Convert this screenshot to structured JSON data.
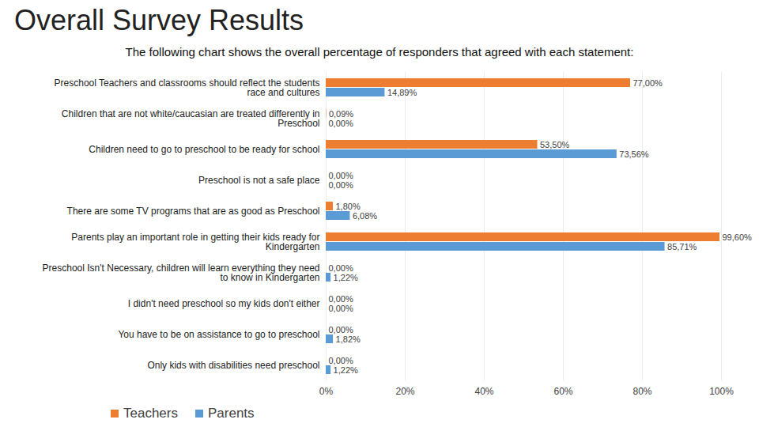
{
  "chart_data": {
    "type": "bar",
    "title": "Overall Survey Results",
    "subtitle": "The following chart shows the overall percentage of responders that agreed with each statement:",
    "orientation": "horizontal",
    "categories": [
      "Preschool Teachers and classrooms should reflect the students race and cultures",
      "Children that are not white/caucasian are treated differently in Preschool",
      "Children need to go to preschool to be ready for school",
      "Preschool is not a safe place",
      "There are some TV programs that are as good as Preschool",
      "Parents play an important role in getting their kids ready for Kindergarten",
      "Preschool Isn't Necessary, children will learn everything they need to know in Kindergarten",
      "I didn't need preschool so my kids don't either",
      "You have to be on assistance to go to preschool",
      "Only kids with disabilities need preschool"
    ],
    "series": [
      {
        "name": "Teachers",
        "color": "#ED7D31",
        "values": [
          77.0,
          0.09,
          53.5,
          0.0,
          1.8,
          99.6,
          0.0,
          0.0,
          0.0,
          0.0
        ],
        "value_labels": [
          "77,00%",
          "0,09%",
          "53,50%",
          "0,00%",
          "1,80%",
          "99,60%",
          "0,00%",
          "0,00%",
          "0,00%",
          "0,00%"
        ]
      },
      {
        "name": "Parents",
        "color": "#5B9BD5",
        "values": [
          14.89,
          0.0,
          73.56,
          0.0,
          6.08,
          85.71,
          1.22,
          0.0,
          1.82,
          1.22
        ],
        "value_labels": [
          "14,89%",
          "0,00%",
          "73,56%",
          "0,00%",
          "6,08%",
          "85,71%",
          "1,22%",
          "0,00%",
          "1,82%",
          "1,22%"
        ]
      }
    ],
    "xlim": [
      0,
      100
    ],
    "xticks": [
      {
        "value": 0,
        "label": "0%"
      },
      {
        "value": 20,
        "label": "20%"
      },
      {
        "value": 40,
        "label": "40%"
      },
      {
        "value": 60,
        "label": "60%"
      },
      {
        "value": 80,
        "label": "80%"
      },
      {
        "value": 100,
        "label": "100%"
      }
    ],
    "grid": true,
    "data_labels": true,
    "legend": "bottom"
  }
}
